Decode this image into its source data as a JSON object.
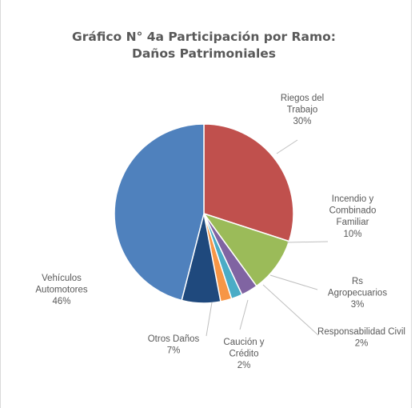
{
  "chart_data": {
    "type": "pie",
    "title_lines": [
      "Gráfico N° 4a Participación por Ramo:",
      "Daños Patrimoniales"
    ],
    "slices": [
      {
        "name": "Riegos del Trabajo",
        "label_lines": [
          "Riegos del",
          "Trabajo",
          "30%"
        ],
        "value": 30,
        "color": "#c0504d"
      },
      {
        "name": "Incendio y Combinado Familiar",
        "label_lines": [
          "Incendio y",
          "Combinado",
          "Familiar",
          "10%"
        ],
        "value": 10,
        "color": "#9bbb59"
      },
      {
        "name": "Rs Agropecuarios",
        "label_lines": [
          "Rs",
          "Agropecuarios",
          "3%"
        ],
        "value": 3,
        "color": "#8064a2"
      },
      {
        "name": "Responsabilidad Civil",
        "label_lines": [
          "Responsabilidad Civil",
          "2%"
        ],
        "value": 2,
        "color": "#4bacc6"
      },
      {
        "name": "Caución y Crédito",
        "label_lines": [
          "Caución y",
          "Crédito",
          "2%"
        ],
        "value": 2,
        "color": "#f79646"
      },
      {
        "name": "Otros Daños",
        "label_lines": [
          "Otros Daños",
          "7%"
        ],
        "value": 7,
        "color": "#1f497d"
      },
      {
        "name": "Vehículos Automotores",
        "label_lines": [
          "Vehículos",
          "Automotores",
          "46%"
        ],
        "value": 46,
        "color": "#4f81bd"
      }
    ],
    "legend": "none"
  }
}
